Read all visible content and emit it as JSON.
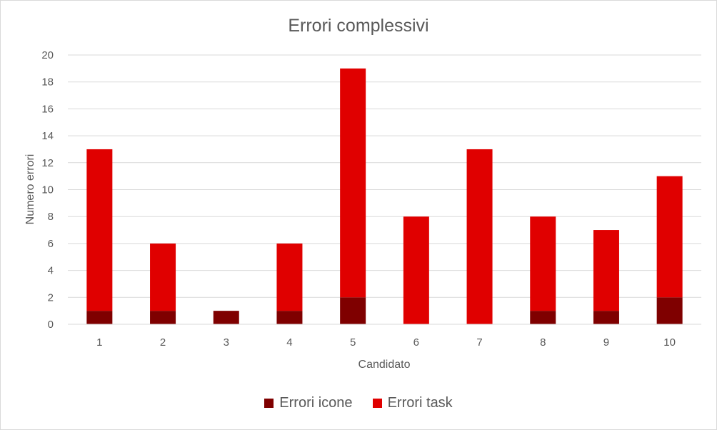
{
  "chart_data": {
    "type": "bar",
    "stacked": true,
    "title": "Errori complessivi",
    "xlabel": "Candidato",
    "ylabel": "Numero errori",
    "categories": [
      "1",
      "2",
      "3",
      "4",
      "5",
      "6",
      "7",
      "8",
      "9",
      "10"
    ],
    "series": [
      {
        "name": "Errori icone",
        "color": "#7f0000",
        "values": [
          1,
          1,
          1,
          1,
          2,
          0,
          0,
          1,
          1,
          2
        ]
      },
      {
        "name": "Errori task",
        "color": "#e00000",
        "values": [
          12,
          5,
          0,
          5,
          17,
          8,
          13,
          7,
          6,
          9
        ]
      }
    ],
    "ylim": [
      0,
      20
    ],
    "yticks": [
      "0",
      "2",
      "4",
      "6",
      "8",
      "10",
      "12",
      "14",
      "16",
      "18",
      "20"
    ],
    "grid": true,
    "legend_position": "bottom"
  }
}
